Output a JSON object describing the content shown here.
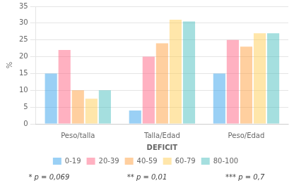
{
  "chart_data": {
    "type": "bar",
    "categories": [
      "Peso/talla",
      "Talla/Edad",
      "Peso/Edad"
    ],
    "series": [
      {
        "name": "0-19",
        "values": [
          15,
          4,
          15
        ]
      },
      {
        "name": "20-39",
        "values": [
          22,
          20,
          25
        ]
      },
      {
        "name": "40-59",
        "values": [
          10,
          24,
          23
        ]
      },
      {
        "name": "60-79",
        "values": [
          7.5,
          31,
          27
        ]
      },
      {
        "name": "80-100",
        "values": [
          10,
          30.5,
          27
        ]
      }
    ],
    "xlabel": "DEFICIT",
    "ylabel": "%",
    "ylim": [
      0,
      35
    ],
    "yticks": [
      0,
      5,
      10,
      15,
      20,
      25,
      30,
      35
    ],
    "grid": true,
    "legend": "bottom",
    "annotations": [
      "* p = 0,069",
      "** p = 0,01",
      "*** p = 0,7"
    ]
  }
}
